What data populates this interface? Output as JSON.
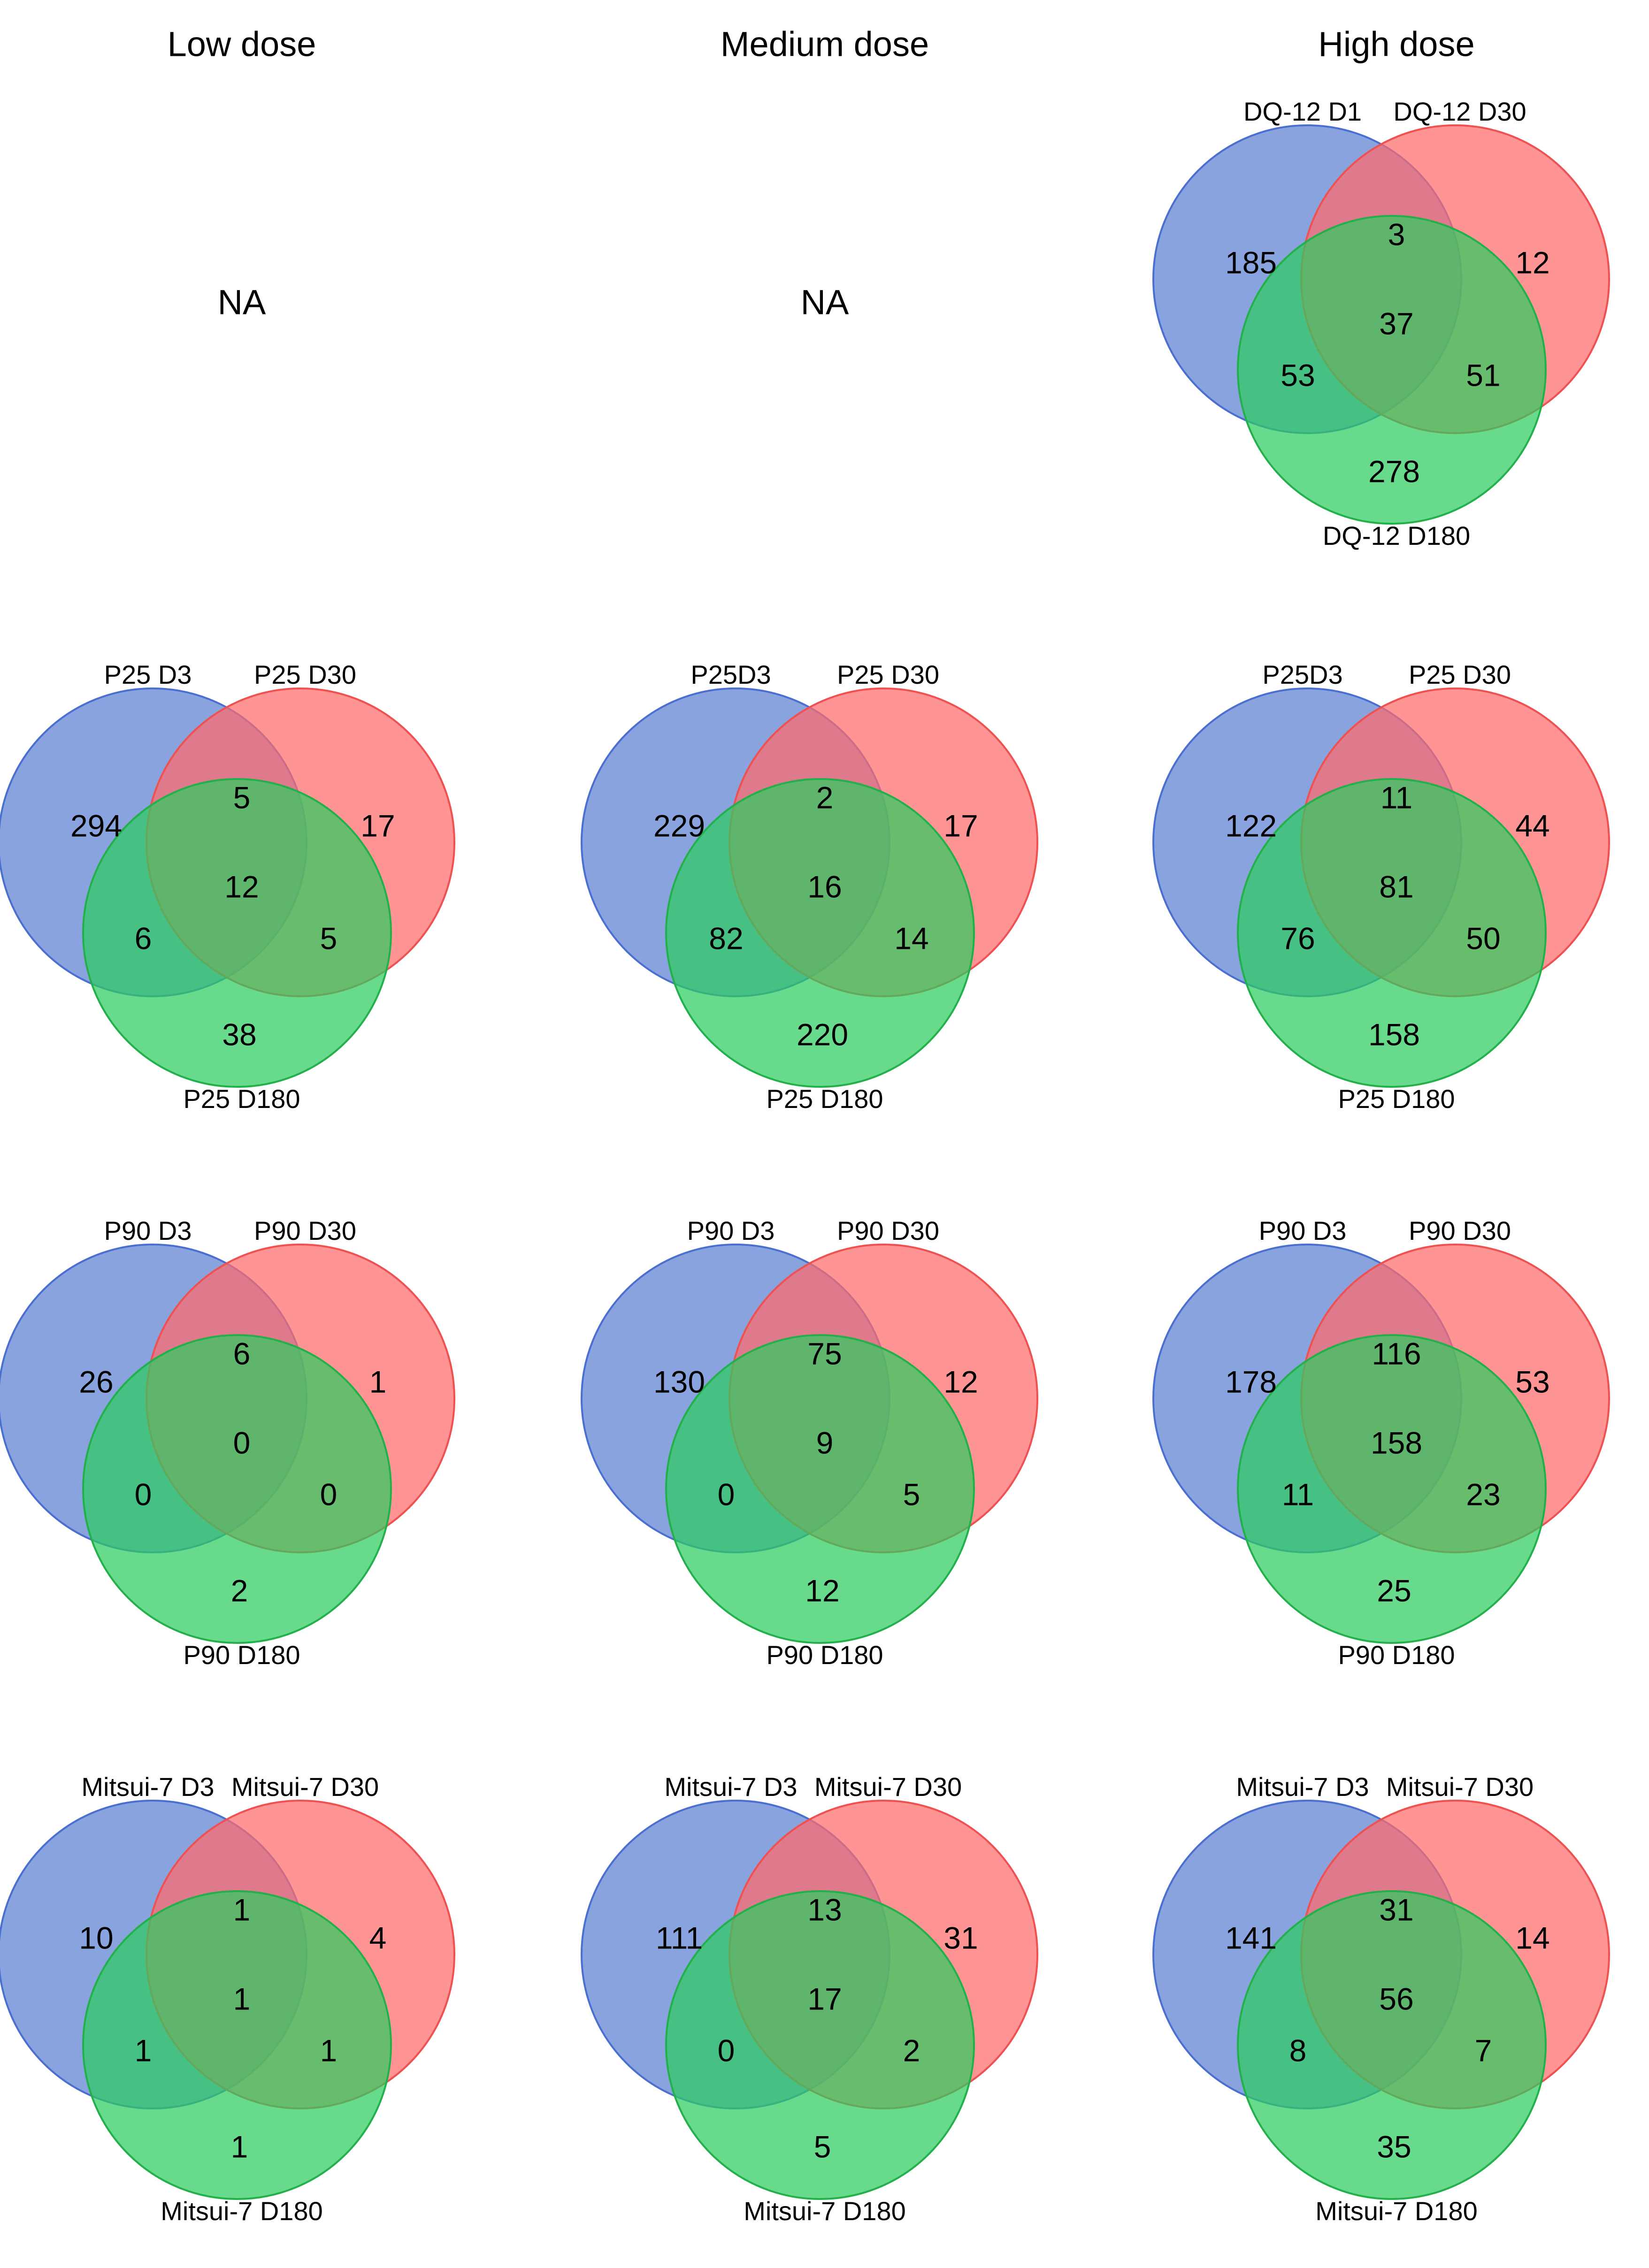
{
  "figure_title": "",
  "columns": [
    "Low dose",
    "Medium dose",
    "High dose"
  ],
  "na_text": "NA",
  "colors": {
    "set_a": "#5a7fd1",
    "set_b": "#ff6b6b",
    "set_c": "#2ecc60",
    "set_a_edge": "#4a6fd0",
    "set_b_edge": "#f05050",
    "set_c_edge": "#22b04a"
  },
  "chart_data": [
    {
      "type": "venn3",
      "row": 0,
      "col": 0,
      "na": true
    },
    {
      "type": "venn3",
      "row": 0,
      "col": 1,
      "na": true
    },
    {
      "type": "venn3",
      "row": 0,
      "col": 2,
      "na": false,
      "labels": {
        "a": "DQ-12 D1",
        "b": "DQ-12 D30",
        "c": "DQ-12 D180"
      },
      "counts": {
        "a_only": 185,
        "b_only": 12,
        "c_only": 278,
        "ab": 3,
        "ac": 53,
        "bc": 51,
        "abc": 37
      }
    },
    {
      "type": "venn3",
      "row": 1,
      "col": 0,
      "na": false,
      "labels": {
        "a": "P25 D3",
        "b": "P25 D30",
        "c": "P25 D180"
      },
      "counts": {
        "a_only": 294,
        "b_only": 17,
        "c_only": 38,
        "ab": 5,
        "ac": 6,
        "bc": 5,
        "abc": 12
      }
    },
    {
      "type": "venn3",
      "row": 1,
      "col": 1,
      "na": false,
      "labels": {
        "a": "P25D3",
        "b": "P25 D30",
        "c": "P25  D180"
      },
      "counts": {
        "a_only": 229,
        "b_only": 17,
        "c_only": 220,
        "ab": 2,
        "ac": 82,
        "bc": 14,
        "abc": 16
      }
    },
    {
      "type": "venn3",
      "row": 1,
      "col": 2,
      "na": false,
      "labels": {
        "a": "P25D3",
        "b": "P25 D30",
        "c": "P25 D180"
      },
      "counts": {
        "a_only": 122,
        "b_only": 44,
        "c_only": 158,
        "ab": 11,
        "ac": 76,
        "bc": 50,
        "abc": 81
      }
    },
    {
      "type": "venn3",
      "row": 2,
      "col": 0,
      "na": false,
      "labels": {
        "a": "P90 D3",
        "b": "P90 D30",
        "c": "P90 D180"
      },
      "counts": {
        "a_only": 26,
        "b_only": 1,
        "c_only": 2,
        "ab": 6,
        "ac": 0,
        "bc": 0,
        "abc": 0
      }
    },
    {
      "type": "venn3",
      "row": 2,
      "col": 1,
      "na": false,
      "labels": {
        "a": "P90 D3",
        "b": "P90 D30",
        "c": "P90 D180"
      },
      "counts": {
        "a_only": 130,
        "b_only": 12,
        "c_only": 12,
        "ab": 75,
        "ac": 0,
        "bc": 5,
        "abc": 9
      }
    },
    {
      "type": "venn3",
      "row": 2,
      "col": 2,
      "na": false,
      "labels": {
        "a": "P90 D3",
        "b": "P90 D30",
        "c": "P90 D180"
      },
      "counts": {
        "a_only": 178,
        "b_only": 53,
        "c_only": 25,
        "ab": 116,
        "ac": 11,
        "bc": 23,
        "abc": 158
      }
    },
    {
      "type": "venn3",
      "row": 3,
      "col": 0,
      "na": false,
      "labels": {
        "a": "Mitsui-7 D3",
        "b": "Mitsui-7 D30",
        "c": "Mitsui-7 D180"
      },
      "counts": {
        "a_only": 10,
        "b_only": 4,
        "c_only": 1,
        "ab": 1,
        "ac": 1,
        "bc": 1,
        "abc": 1
      }
    },
    {
      "type": "venn3",
      "row": 3,
      "col": 1,
      "na": false,
      "labels": {
        "a": "Mitsui-7 D3",
        "b": "Mitsui-7 D30",
        "c": "Mitsui-7 D180"
      },
      "counts": {
        "a_only": 111,
        "b_only": 31,
        "c_only": 5,
        "ab": 13,
        "ac": 0,
        "bc": 2,
        "abc": 17
      }
    },
    {
      "type": "venn3",
      "row": 3,
      "col": 2,
      "na": false,
      "labels": {
        "a": "Mitsui-7 D3",
        "b": "Mitsui-7 D30",
        "c": "Mitsui-7 D180"
      },
      "counts": {
        "a_only": 141,
        "b_only": 14,
        "c_only": 35,
        "ab": 31,
        "ac": 8,
        "bc": 7,
        "abc": 56
      }
    }
  ]
}
